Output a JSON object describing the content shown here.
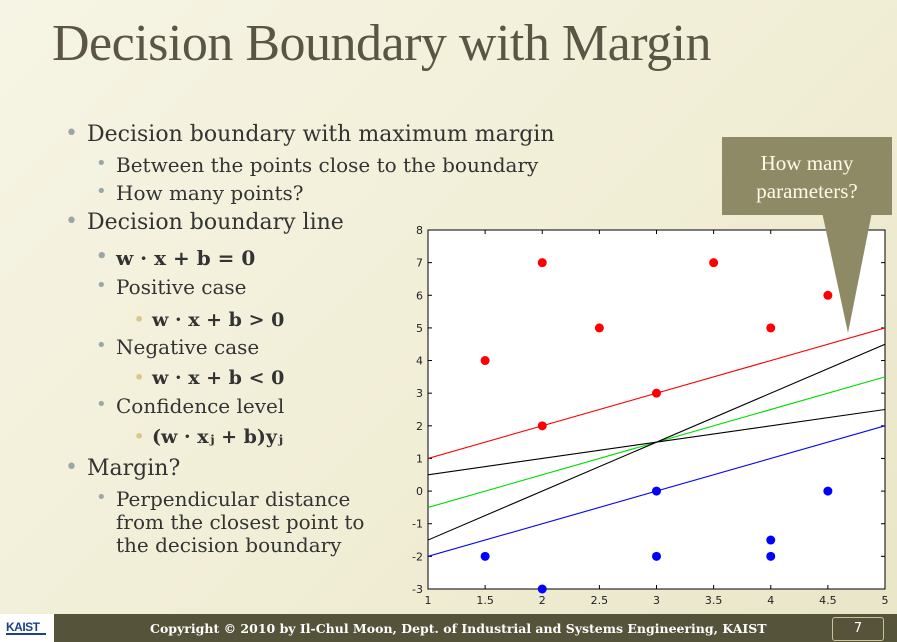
{
  "slide": {
    "title": "Decision Boundary with Margin",
    "callout_text": [
      "How many",
      "parameters?"
    ],
    "footer_copyright": "Copyright © 2010 by Il-Chul Moon, Dept. of Industrial and Systems Engineering, KAIST",
    "page_number": "7",
    "logo_text": "KAIST"
  },
  "bullets": [
    {
      "level": 1,
      "text": "Decision boundary with maximum margin"
    },
    {
      "level": 2,
      "text": "Between the points close to the boundary"
    },
    {
      "level": 2,
      "text": "How many points?"
    },
    {
      "level": 1,
      "text": "Decision boundary line"
    },
    {
      "level": 2,
      "text": "w · x + b = 0"
    },
    {
      "level": 2,
      "text": "Positive case"
    },
    {
      "level": 3,
      "text": "w · x + b > 0"
    },
    {
      "level": 2,
      "text": "Negative case"
    },
    {
      "level": 3,
      "text": "w · x + b < 0"
    },
    {
      "level": 2,
      "text": "Confidence level"
    },
    {
      "level": 3,
      "text": "(w · xⱼ + b)yⱼ"
    },
    {
      "level": 1,
      "text": "Margin?"
    },
    {
      "level": 2,
      "text": "Perpendicular distance"
    },
    {
      "level": 2,
      "text": "from the closest point to"
    },
    {
      "level": 2,
      "text": "the decision boundary"
    }
  ],
  "chart_data": {
    "type": "scatter",
    "xlim": [
      1,
      5
    ],
    "ylim": [
      -3,
      8
    ],
    "xticks": [
      "1",
      "1.5",
      "2",
      "2.5",
      "3",
      "3.5",
      "4",
      "4.5",
      "5"
    ],
    "yticks": [
      "-3",
      "-2",
      "-1",
      "0",
      "1",
      "2",
      "3",
      "4",
      "5",
      "6",
      "7",
      "8"
    ],
    "grid": false,
    "series": [
      {
        "color": "#ff0000",
        "points": [
          [
            1.5,
            4
          ],
          [
            2,
            7
          ],
          [
            2,
            2
          ],
          [
            2.5,
            5
          ],
          [
            3,
            3
          ],
          [
            3.5,
            7
          ],
          [
            4,
            5
          ],
          [
            4.5,
            6
          ]
        ]
      },
      {
        "color": "#0000ff",
        "points": [
          [
            1.5,
            -2
          ],
          [
            2,
            -3
          ],
          [
            3,
            0
          ],
          [
            3,
            -2
          ],
          [
            4,
            -1.5
          ],
          [
            4,
            -2
          ],
          [
            4.5,
            0
          ]
        ]
      }
    ],
    "lines": [
      {
        "color": "#ff0000",
        "from": [
          1,
          1
        ],
        "to": [
          5,
          5
        ]
      },
      {
        "color": "#0000ff",
        "from": [
          1,
          -2
        ],
        "to": [
          5,
          2
        ]
      },
      {
        "color": "#00dd00",
        "from": [
          1,
          -0.5
        ],
        "to": [
          5,
          3.5
        ]
      },
      {
        "color": "#000000",
        "from": [
          1,
          -1.5
        ],
        "to": [
          5,
          4.5
        ]
      },
      {
        "color": "#000000",
        "from": [
          1,
          0.5
        ],
        "to": [
          5,
          2.5
        ]
      }
    ]
  }
}
